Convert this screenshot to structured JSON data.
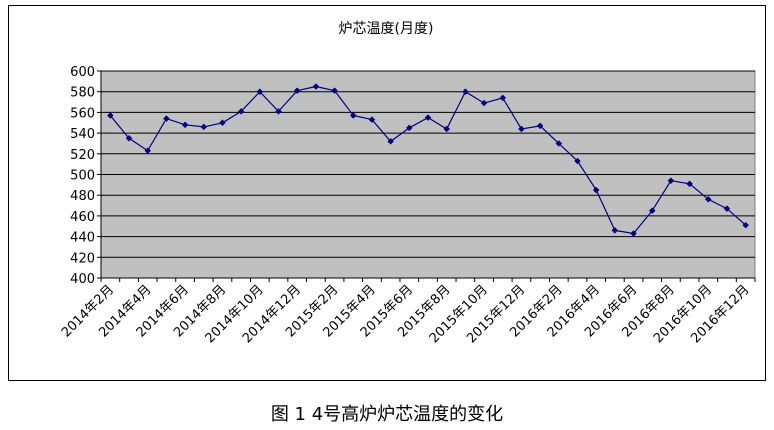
{
  "chart_data": {
    "type": "line",
    "title": "炉芯温度(月度)",
    "xlabel": "",
    "ylabel": "",
    "ylim": [
      400,
      600
    ],
    "yticks": [
      400,
      420,
      440,
      460,
      480,
      500,
      520,
      540,
      560,
      580,
      600
    ],
    "x_tick_labels": [
      "2014年2月",
      "2014年4月",
      "2014年6月",
      "2014年8月",
      "2014年10月",
      "2014年12月",
      "2015年2月",
      "2015年4月",
      "2015年6月",
      "2015年8月",
      "2015年10月",
      "2015年12月",
      "2016年2月",
      "2016年4月",
      "2016年6月",
      "2016年8月",
      "2016年10月",
      "2016年12月"
    ],
    "categories": [
      "2014年2月",
      "2014年3月",
      "2014年4月",
      "2014年5月",
      "2014年6月",
      "2014年7月",
      "2014年8月",
      "2014年9月",
      "2014年10月",
      "2014年11月",
      "2014年12月",
      "2015年1月",
      "2015年2月",
      "2015年3月",
      "2015年4月",
      "2015年5月",
      "2015年6月",
      "2015年7月",
      "2015年8月",
      "2015年9月",
      "2015年10月",
      "2015年11月",
      "2015年12月",
      "2016年1月",
      "2016年2月",
      "2016年3月",
      "2016年4月",
      "2016年5月",
      "2016年6月",
      "2016年7月",
      "2016年8月",
      "2016年9月",
      "2016年10月",
      "2016年11月",
      "2016年12月"
    ],
    "series": [
      {
        "name": "",
        "values": [
          557,
          535,
          523,
          554,
          548,
          546,
          550,
          561,
          580,
          561,
          581,
          585,
          581,
          557,
          553,
          532,
          545,
          555,
          544,
          580,
          569,
          574,
          544,
          547,
          530,
          513,
          485,
          446,
          443,
          465,
          494,
          491,
          476,
          467,
          451
        ]
      }
    ],
    "grid": true,
    "legend": "none",
    "colors": {
      "line": "#000080",
      "marker": "#000080",
      "plot_bg": "#c0c0c0",
      "grid": "#000000"
    }
  },
  "caption": "图 1  4号高炉炉芯温度的变化"
}
